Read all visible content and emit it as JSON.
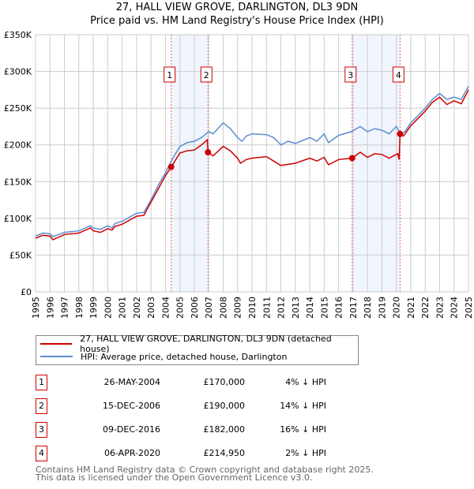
{
  "chart_data": {
    "type": "line",
    "title": "27, HALL VIEW GROVE, DARLINGTON, DL3 9DN",
    "subtitle": "Price paid vs. HM Land Registry's House Price Index (HPI)",
    "xlim": [
      1995,
      2025
    ],
    "ylim": [
      0,
      350000
    ],
    "y_ticks": [
      {
        "v": 0,
        "label": "£0"
      },
      {
        "v": 50000,
        "label": "£50K"
      },
      {
        "v": 100000,
        "label": "£100K"
      },
      {
        "v": 150000,
        "label": "£150K"
      },
      {
        "v": 200000,
        "label": "£200K"
      },
      {
        "v": 250000,
        "label": "£250K"
      },
      {
        "v": 300000,
        "label": "£300K"
      },
      {
        "v": 350000,
        "label": "£350K"
      }
    ],
    "x_ticks": [
      "1995",
      "1996",
      "1997",
      "1998",
      "1999",
      "2000",
      "2001",
      "2002",
      "2003",
      "2004",
      "2005",
      "2006",
      "2007",
      "2008",
      "2009",
      "2010",
      "2011",
      "2012",
      "2013",
      "2014",
      "2015",
      "2016",
      "2017",
      "2018",
      "2019",
      "2020",
      "2021",
      "2022",
      "2023",
      "2024",
      "2025"
    ],
    "grid": true,
    "series": [
      {
        "name": "27, HALL VIEW GROVE, DARLINGTON, DL3 9DN (detached house)",
        "color": "#cc0000",
        "x": [
          1995,
          1995.5,
          1996,
          1996.2,
          1997,
          1998,
          1998.8,
          1999,
          1999.5,
          2000,
          2000.3,
          2000.5,
          2001,
          2002,
          2002.5,
          2003,
          2003.5,
          2004,
          2004.4,
          2005,
          2005.5,
          2006,
          2006.5,
          2006.9,
          2006.95,
          2007.3,
          2008,
          2008.5,
          2009,
          2009.2,
          2009.6,
          2010,
          2011,
          2011.5,
          2012,
          2013,
          2014,
          2014.5,
          2015,
          2015.3,
          2016,
          2016.94,
          2017.5,
          2018,
          2018.5,
          2019,
          2019.5,
          2020.1,
          2020.2,
          2020.26,
          2020.5,
          2021,
          2021.5,
          2022,
          2022.5,
          2023,
          2023.5,
          2024,
          2024.5,
          2025
        ],
        "y": [
          73000,
          77000,
          76000,
          71000,
          78000,
          80000,
          87000,
          83000,
          81000,
          86000,
          84000,
          89000,
          92000,
          103000,
          104000,
          122000,
          140000,
          158000,
          170000,
          189000,
          192000,
          193000,
          200000,
          207000,
          190000,
          185000,
          198000,
          192000,
          182000,
          175000,
          180000,
          182000,
          184000,
          178000,
          172000,
          175000,
          182000,
          178000,
          183000,
          173000,
          180000,
          182000,
          190000,
          183000,
          188000,
          187000,
          182000,
          188000,
          180000,
          214950,
          212000,
          226000,
          236000,
          246000,
          258000,
          265000,
          255000,
          260000,
          256000,
          275000
        ]
      },
      {
        "name": "HPI: Average price, detached house, Darlington",
        "color": "#5b8fd0",
        "x": [
          1995,
          1995.5,
          1996,
          1996.2,
          1997,
          1998,
          1998.8,
          1999,
          1999.5,
          2000,
          2000.3,
          2000.5,
          2001,
          2002,
          2002.5,
          2003,
          2003.5,
          2004,
          2004.4,
          2005,
          2005.5,
          2006,
          2006.5,
          2007,
          2007.3,
          2008,
          2008.5,
          2009,
          2009.3,
          2009.6,
          2010,
          2011,
          2011.5,
          2012,
          2012.5,
          2013,
          2014,
          2014.5,
          2015,
          2015.3,
          2016,
          2016.9,
          2017.5,
          2018,
          2018.5,
          2019,
          2019.5,
          2020,
          2020.3,
          2020.6,
          2021,
          2021.5,
          2022,
          2022.5,
          2023,
          2023.5,
          2024,
          2024.5,
          2025
        ],
        "y": [
          76000,
          80000,
          79000,
          75000,
          81000,
          83000,
          90000,
          87000,
          85000,
          90000,
          87000,
          93000,
          96000,
          107000,
          108000,
          125000,
          145000,
          162000,
          178000,
          198000,
          203000,
          205000,
          210000,
          218000,
          215000,
          230000,
          222000,
          210000,
          205000,
          212000,
          215000,
          214000,
          210000,
          200000,
          205000,
          202000,
          210000,
          205000,
          215000,
          203000,
          213000,
          218000,
          225000,
          218000,
          222000,
          220000,
          215000,
          225000,
          215000,
          218000,
          230000,
          240000,
          250000,
          262000,
          270000,
          262000,
          265000,
          262000,
          280000
        ]
      }
    ],
    "sales": [
      {
        "n": "1",
        "x": 2004.4,
        "y": 170000,
        "date": "26-MAY-2004",
        "price": "£170,000",
        "hpi": "4% ↓ HPI"
      },
      {
        "n": "2",
        "x": 2006.95,
        "y": 190000,
        "date": "15-DEC-2006",
        "price": "£190,000",
        "hpi": "14% ↓ HPI"
      },
      {
        "n": "3",
        "x": 2016.94,
        "y": 182000,
        "date": "09-DEC-2016",
        "price": "£182,000",
        "hpi": "16% ↓ HPI"
      },
      {
        "n": "4",
        "x": 2020.26,
        "y": 214950,
        "date": "06-APR-2020",
        "price": "£214,950",
        "hpi": "2% ↓ HPI"
      }
    ],
    "shaded_periods": [
      [
        2004.4,
        2006.95
      ],
      [
        2016.94,
        2020.26
      ]
    ],
    "legend": "bottom"
  },
  "footer": {
    "line1": "Contains HM Land Registry data © Crown copyright and database right 2025.",
    "line2": "This data is licensed under the Open Government Licence v3.0."
  }
}
